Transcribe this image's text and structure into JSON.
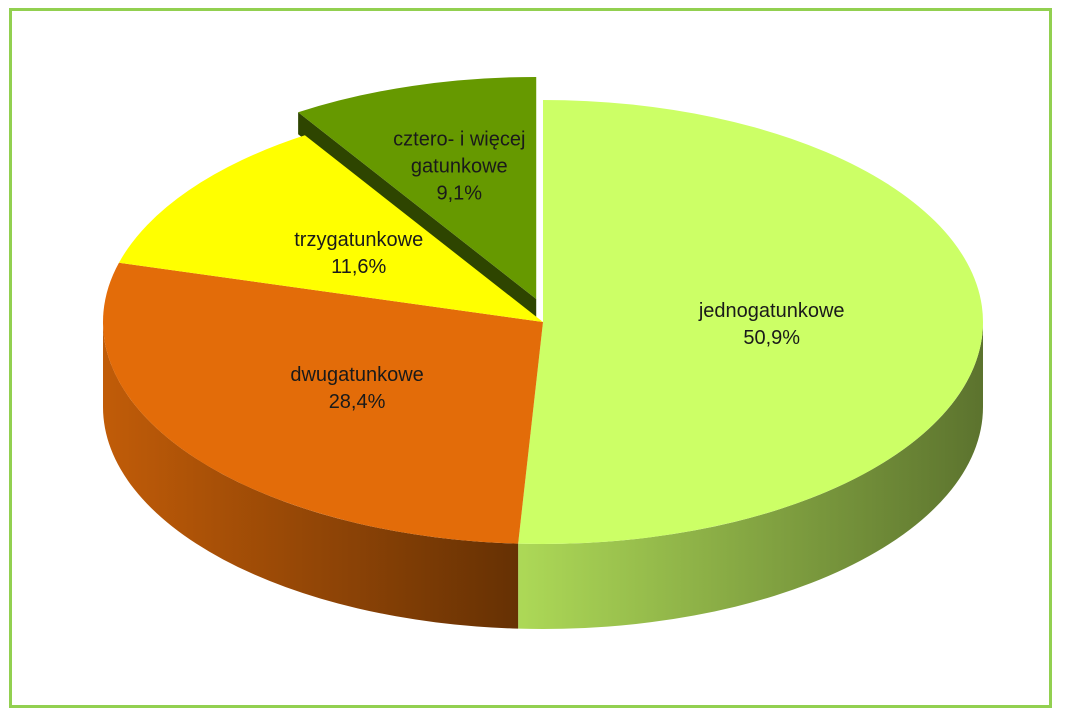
{
  "chart_data": {
    "type": "pie",
    "categories": [
      "jednogatunkowe",
      "dwugatunkowe",
      "trzygatunkowe",
      "cztero- i więcej gatunkowe"
    ],
    "values": [
      50.9,
      28.4,
      11.6,
      9.1
    ],
    "value_labels": [
      "50,9%",
      "28,4%",
      "11,6%",
      "9,1%"
    ],
    "colors": [
      "#ccff66",
      "#e36c09",
      "#ffff00",
      "#669900"
    ]
  }
}
